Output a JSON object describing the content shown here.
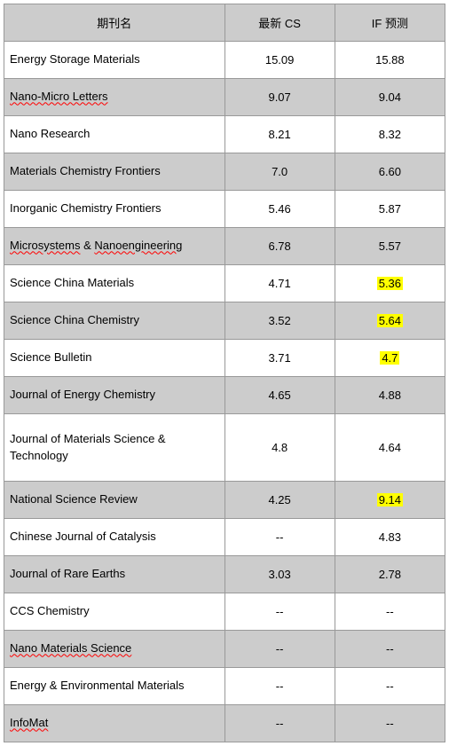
{
  "table": {
    "headers": {
      "name": "期刊名",
      "cs": "最新 CS",
      "if": "IF 预测"
    },
    "col_widths": [
      "50%",
      "25%",
      "25%"
    ],
    "colors": {
      "header_bg": "#cccccc",
      "row_gray_bg": "#cccccc",
      "row_white_bg": "#ffffff",
      "border": "#999999",
      "underline": "#ff0000",
      "highlight_bg": "#ffff00",
      "text": "#000000"
    },
    "font_size": 13,
    "rows": [
      {
        "name_parts": [
          {
            "text": "Energy Storage Materials",
            "u": false
          }
        ],
        "cs": "15.09",
        "if": "15.88",
        "if_hl": false,
        "shade": "white"
      },
      {
        "name_parts": [
          {
            "text": "Nano-Micro Letters",
            "u": true
          }
        ],
        "cs": "9.07",
        "if": "9.04",
        "if_hl": false,
        "shade": "gray"
      },
      {
        "name_parts": [
          {
            "text": "Nano Research",
            "u": false
          }
        ],
        "cs": "8.21",
        "if": "8.32",
        "if_hl": false,
        "shade": "white"
      },
      {
        "name_parts": [
          {
            "text": "Materials Chemistry Frontiers",
            "u": false
          }
        ],
        "cs": "7.0",
        "if": "6.60",
        "if_hl": false,
        "shade": "gray"
      },
      {
        "name_parts": [
          {
            "text": "Inorganic Chemistry Frontiers",
            "u": false
          }
        ],
        "cs": "5.46",
        "if": "5.87",
        "if_hl": false,
        "shade": "white"
      },
      {
        "name_parts": [
          {
            "text": "Microsystems",
            "u": true
          },
          {
            "text": " & ",
            "u": false
          },
          {
            "text": "Nanoengineering",
            "u": true
          }
        ],
        "cs": "6.78",
        "if": "5.57",
        "if_hl": false,
        "shade": "gray"
      },
      {
        "name_parts": [
          {
            "text": "Science China Materials",
            "u": false
          }
        ],
        "cs": "4.71",
        "if": "5.36",
        "if_hl": true,
        "shade": "white"
      },
      {
        "name_parts": [
          {
            "text": "Science China Chemistry",
            "u": false
          }
        ],
        "cs": "3.52",
        "if": "5.64",
        "if_hl": true,
        "shade": "gray"
      },
      {
        "name_parts": [
          {
            "text": "Science Bulletin",
            "u": false
          }
        ],
        "cs": "3.71",
        "if": "4.7",
        "if_hl": true,
        "shade": "white"
      },
      {
        "name_parts": [
          {
            "text": "Journal of Energy Chemistry",
            "u": false
          }
        ],
        "cs": "4.65",
        "if": "4.88",
        "if_hl": false,
        "shade": "gray"
      },
      {
        "name_parts": [
          {
            "text": "Journal of Materials Science & Technology",
            "u": false
          }
        ],
        "cs": "4.8",
        "if": "4.64",
        "if_hl": false,
        "shade": "white",
        "tall": true
      },
      {
        "name_parts": [
          {
            "text": "National Science Review",
            "u": false
          }
        ],
        "cs": "4.25",
        "if": "9.14",
        "if_hl": true,
        "shade": "gray"
      },
      {
        "name_parts": [
          {
            "text": "Chinese Journal of Catalysis",
            "u": false
          }
        ],
        "cs": "--",
        "if": "4.83",
        "if_hl": false,
        "shade": "white"
      },
      {
        "name_parts": [
          {
            "text": "Journal of Rare Earths",
            "u": false
          }
        ],
        "cs": "3.03",
        "if": "2.78",
        "if_hl": false,
        "shade": "gray"
      },
      {
        "name_parts": [
          {
            "text": "CCS Chemistry",
            "u": false
          }
        ],
        "cs": "--",
        "if": "--",
        "if_hl": false,
        "shade": "white"
      },
      {
        "name_parts": [
          {
            "text": "Nano Materials Science",
            "u": true
          }
        ],
        "cs": "--",
        "if": "--",
        "if_hl": false,
        "shade": "gray"
      },
      {
        "name_parts": [
          {
            "text": "Energy & Environmental Materials",
            "u": false
          }
        ],
        "cs": "--",
        "if": "--",
        "if_hl": false,
        "shade": "white"
      },
      {
        "name_parts": [
          {
            "text": "InfoMat",
            "u": true
          }
        ],
        "cs": "--",
        "if": "--",
        "if_hl": false,
        "shade": "gray"
      }
    ]
  }
}
